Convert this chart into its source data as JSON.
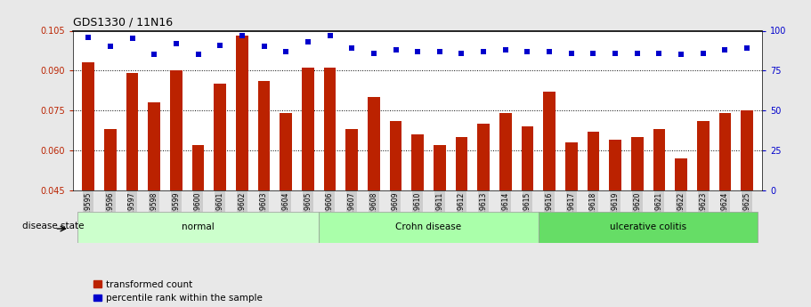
{
  "title": "GDS1330 / 11N16",
  "samples": [
    "GSM29595",
    "GSM29596",
    "GSM29597",
    "GSM29598",
    "GSM29599",
    "GSM29600",
    "GSM29601",
    "GSM29602",
    "GSM29603",
    "GSM29604",
    "GSM29605",
    "GSM29606",
    "GSM29607",
    "GSM29608",
    "GSM29609",
    "GSM29610",
    "GSM29611",
    "GSM29612",
    "GSM29613",
    "GSM29614",
    "GSM29615",
    "GSM29616",
    "GSM29617",
    "GSM29618",
    "GSM29619",
    "GSM29620",
    "GSM29621",
    "GSM29622",
    "GSM29623",
    "GSM29624",
    "GSM29625"
  ],
  "bar_values": [
    0.093,
    0.068,
    0.089,
    0.078,
    0.09,
    0.062,
    0.085,
    0.103,
    0.086,
    0.074,
    0.091,
    0.091,
    0.068,
    0.08,
    0.071,
    0.066,
    0.062,
    0.065,
    0.07,
    0.074,
    0.069,
    0.082,
    0.063,
    0.067,
    0.064,
    0.065,
    0.068,
    0.057,
    0.071,
    0.074,
    0.075
  ],
  "percentile_values": [
    96,
    90,
    95,
    85,
    92,
    85,
    91,
    97,
    90,
    87,
    93,
    97,
    89,
    86,
    88,
    87,
    87,
    86,
    87,
    88,
    87,
    87,
    86,
    86,
    86,
    86,
    86,
    85,
    86,
    88,
    89
  ],
  "bar_color": "#bb2200",
  "percentile_color": "#0000cc",
  "ylim_left": [
    0.045,
    0.105
  ],
  "ylim_right": [
    0,
    100
  ],
  "yticks_left": [
    0.045,
    0.06,
    0.075,
    0.09,
    0.105
  ],
  "yticks_right": [
    0,
    25,
    50,
    75,
    100
  ],
  "grid_values": [
    0.06,
    0.075,
    0.09
  ],
  "disease_groups": [
    {
      "label": "normal",
      "start": 0,
      "end": 11,
      "color": "#ccffcc"
    },
    {
      "label": "Crohn disease",
      "start": 11,
      "end": 21,
      "color": "#aaffaa"
    },
    {
      "label": "ulcerative colitis",
      "start": 21,
      "end": 31,
      "color": "#66dd66"
    }
  ],
  "disease_state_label": "disease state",
  "legend_bar_label": "transformed count",
  "legend_pct_label": "percentile rank within the sample",
  "bg_color": "#e8e8e8",
  "plot_bg_color": "#ffffff",
  "tick_bg_color": "#cccccc"
}
